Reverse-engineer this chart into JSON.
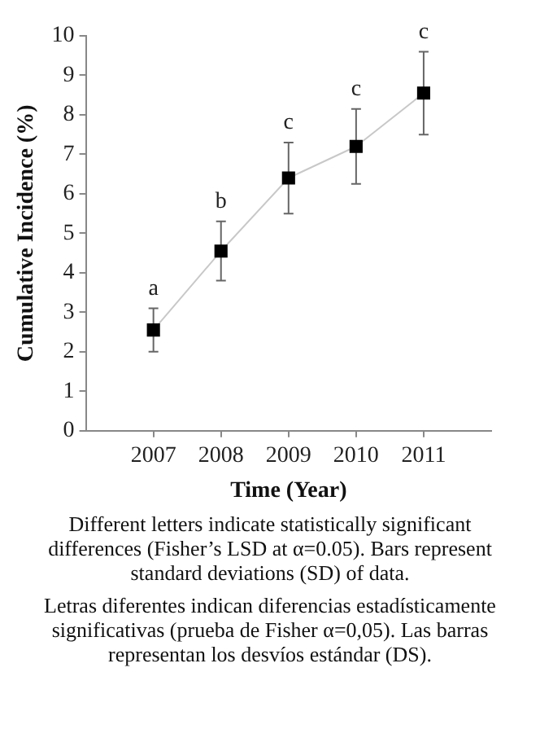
{
  "chart_data": {
    "type": "line",
    "xlabel": "Time (Year)",
    "ylabel": "Cumulative Incidence (%)",
    "x": [
      2007,
      2008,
      2009,
      2010,
      2011
    ],
    "series": [
      {
        "color": "#c8c8c8",
        "values": [
          2.55,
          4.55,
          6.4,
          7.2,
          8.55
        ],
        "errors": [
          [
            2.0,
            3.1
          ],
          [
            3.8,
            5.3
          ],
          [
            5.5,
            7.3
          ],
          [
            6.25,
            8.15
          ],
          [
            7.5,
            9.6
          ]
        ]
      }
    ],
    "xlim": [
      2006,
      2012
    ],
    "xticks": [
      2007,
      2008,
      2009,
      2010,
      2011
    ],
    "ylim": [
      0,
      10
    ],
    "yticks": [
      0,
      1,
      2,
      3,
      4,
      5,
      6,
      7,
      8,
      9,
      10
    ],
    "grid": false,
    "legend": false,
    "marker": "square",
    "line_style": "solid",
    "annotations": [
      {
        "text": "a",
        "x": 2007,
        "y": 3.1
      },
      {
        "text": "b",
        "x": 2008,
        "y": 5.3
      },
      {
        "text": "c",
        "x": 2009,
        "y": 7.3
      },
      {
        "text": "c",
        "x": 2010,
        "y": 8.15
      },
      {
        "text": "c",
        "x": 2011,
        "y": 9.6
      },
      "Different letters indicate statistically significant differences (Fisher’s LSD at α=0.05). Bars represent standard deviations (SD) of data.",
      "Letras diferentes indican diferencias estadísticamente significativas (prueba de Fisher  α=0,05). Las barras representan los desvíos estándar (DS)."
    ]
  }
}
